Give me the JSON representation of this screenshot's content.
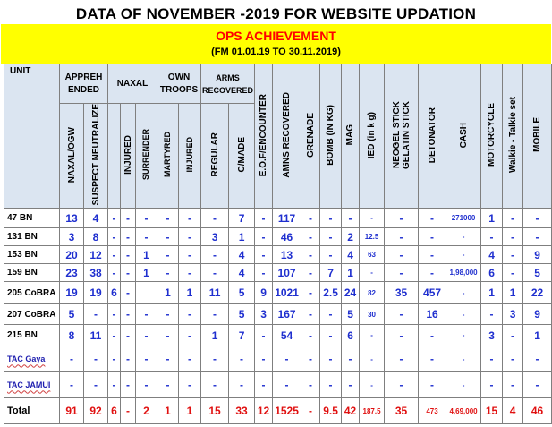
{
  "title": "DATA OF NOVEMBER -2019  FOR  WEBSITE UPDATION",
  "banner": {
    "heading": "OPS ACHIEVEMENT",
    "period": "(FM 01.01.19  TO  30.11.2019)"
  },
  "groups": {
    "unit": "UNIT",
    "apprehended": "APPREH ENDED",
    "naxal": "NAXAL",
    "own_troops": "OWN TROOPS",
    "arms_recovered": "ARMS RECOVERED"
  },
  "columns": [
    "NAXAL/OGW",
    "SUSPECT NEUTRALIZE",
    "",
    "INJURED",
    "SURRENDER",
    "MARTYRED",
    "INJURED",
    "REGULAR",
    "C/MADE",
    "E.O.F/ENCOUNTER",
    "AMNS RECOVERED",
    "GRENADE",
    "BOMB (IN KG)",
    "MAG",
    "IED (in k  g)",
    "NEOGEL STICK GELATIN STICK",
    "DETONATOR",
    "CASH",
    "MOTORCYCLE",
    "Walkie - Talkie set",
    "MOBILE"
  ],
  "rows": [
    {
      "unit": "47 BN",
      "tac": false,
      "cells": [
        "13",
        "4",
        "-",
        "-",
        "-",
        "-",
        "-",
        "-",
        "7",
        "-",
        "117",
        "-",
        "-",
        "-",
        "-",
        "-",
        "-",
        "271000",
        "1",
        "-",
        "-"
      ]
    },
    {
      "unit": "131 BN",
      "tac": false,
      "cells": [
        "3",
        "8",
        "-",
        "-",
        "-",
        "-",
        "-",
        "3",
        "1",
        "-",
        "46",
        "-",
        "-",
        "2",
        "12.5",
        "-",
        "-",
        "-",
        "-",
        "-",
        "-"
      ]
    },
    {
      "unit": "153 BN",
      "tac": false,
      "cells": [
        "20",
        "12",
        "-",
        "-",
        "1",
        "-",
        "-",
        "-",
        "4",
        "-",
        "13",
        "-",
        "-",
        "4",
        "63",
        "-",
        "-",
        "-",
        "4",
        "-",
        "9"
      ]
    },
    {
      "unit": "159 BN",
      "tac": false,
      "cells": [
        "23",
        "38",
        "-",
        "-",
        "1",
        "-",
        "-",
        "-",
        "4",
        "-",
        "107",
        "-",
        "7",
        "1",
        "-",
        "-",
        "-",
        "1,98,000",
        "6",
        "-",
        "5"
      ]
    },
    {
      "unit": "205 CoBRA",
      "tac": false,
      "cells": [
        "19",
        "19",
        "6",
        "-",
        "",
        "1",
        "1",
        "11",
        "5",
        "9",
        "1021",
        "-",
        "2.5",
        "24",
        "82",
        "35",
        "457",
        "-",
        "1",
        "1",
        "22"
      ]
    },
    {
      "unit": "207 CoBRA",
      "tac": false,
      "cells": [
        "5",
        "-",
        "-",
        "-",
        "-",
        "-",
        "-",
        "-",
        "5",
        "3",
        "167",
        "-",
        "-",
        "5",
        "30",
        "-",
        "16",
        "-",
        "-",
        "3",
        "9"
      ]
    },
    {
      "unit": "215 BN",
      "tac": false,
      "cells": [
        "8",
        "11",
        "-",
        "-",
        "-",
        "-",
        "-",
        "1",
        "7",
        "-",
        "54",
        "-",
        "-",
        "6",
        "-",
        "-",
        "-",
        "-",
        "3",
        "-",
        "1"
      ]
    },
    {
      "unit": "TAC Gaya",
      "tac": true,
      "cells": [
        "-",
        "-",
        "-",
        "-",
        "-",
        "-",
        "-",
        "-",
        "-",
        "-",
        "-",
        "-",
        "-",
        "-",
        "-",
        "-",
        "-",
        "-",
        "-",
        "-",
        "-"
      ]
    },
    {
      "unit": "TAC JAMUI",
      "tac": true,
      "cells": [
        "-",
        "-",
        "-",
        "-",
        "-",
        "-",
        "-",
        "-",
        "-",
        "-",
        "-",
        "-",
        "-",
        "-",
        "-",
        "-",
        "-",
        "-",
        "-",
        "-",
        "-"
      ]
    }
  ],
  "total": {
    "label": "Total",
    "cells": [
      "91",
      "92",
      "6",
      "-",
      "2",
      "1",
      "1",
      "15",
      "33",
      "12",
      "1525",
      "-",
      "9.5",
      "42",
      "187.5",
      "35",
      "473",
      "4,69,000",
      "15",
      "4",
      "46"
    ]
  }
}
